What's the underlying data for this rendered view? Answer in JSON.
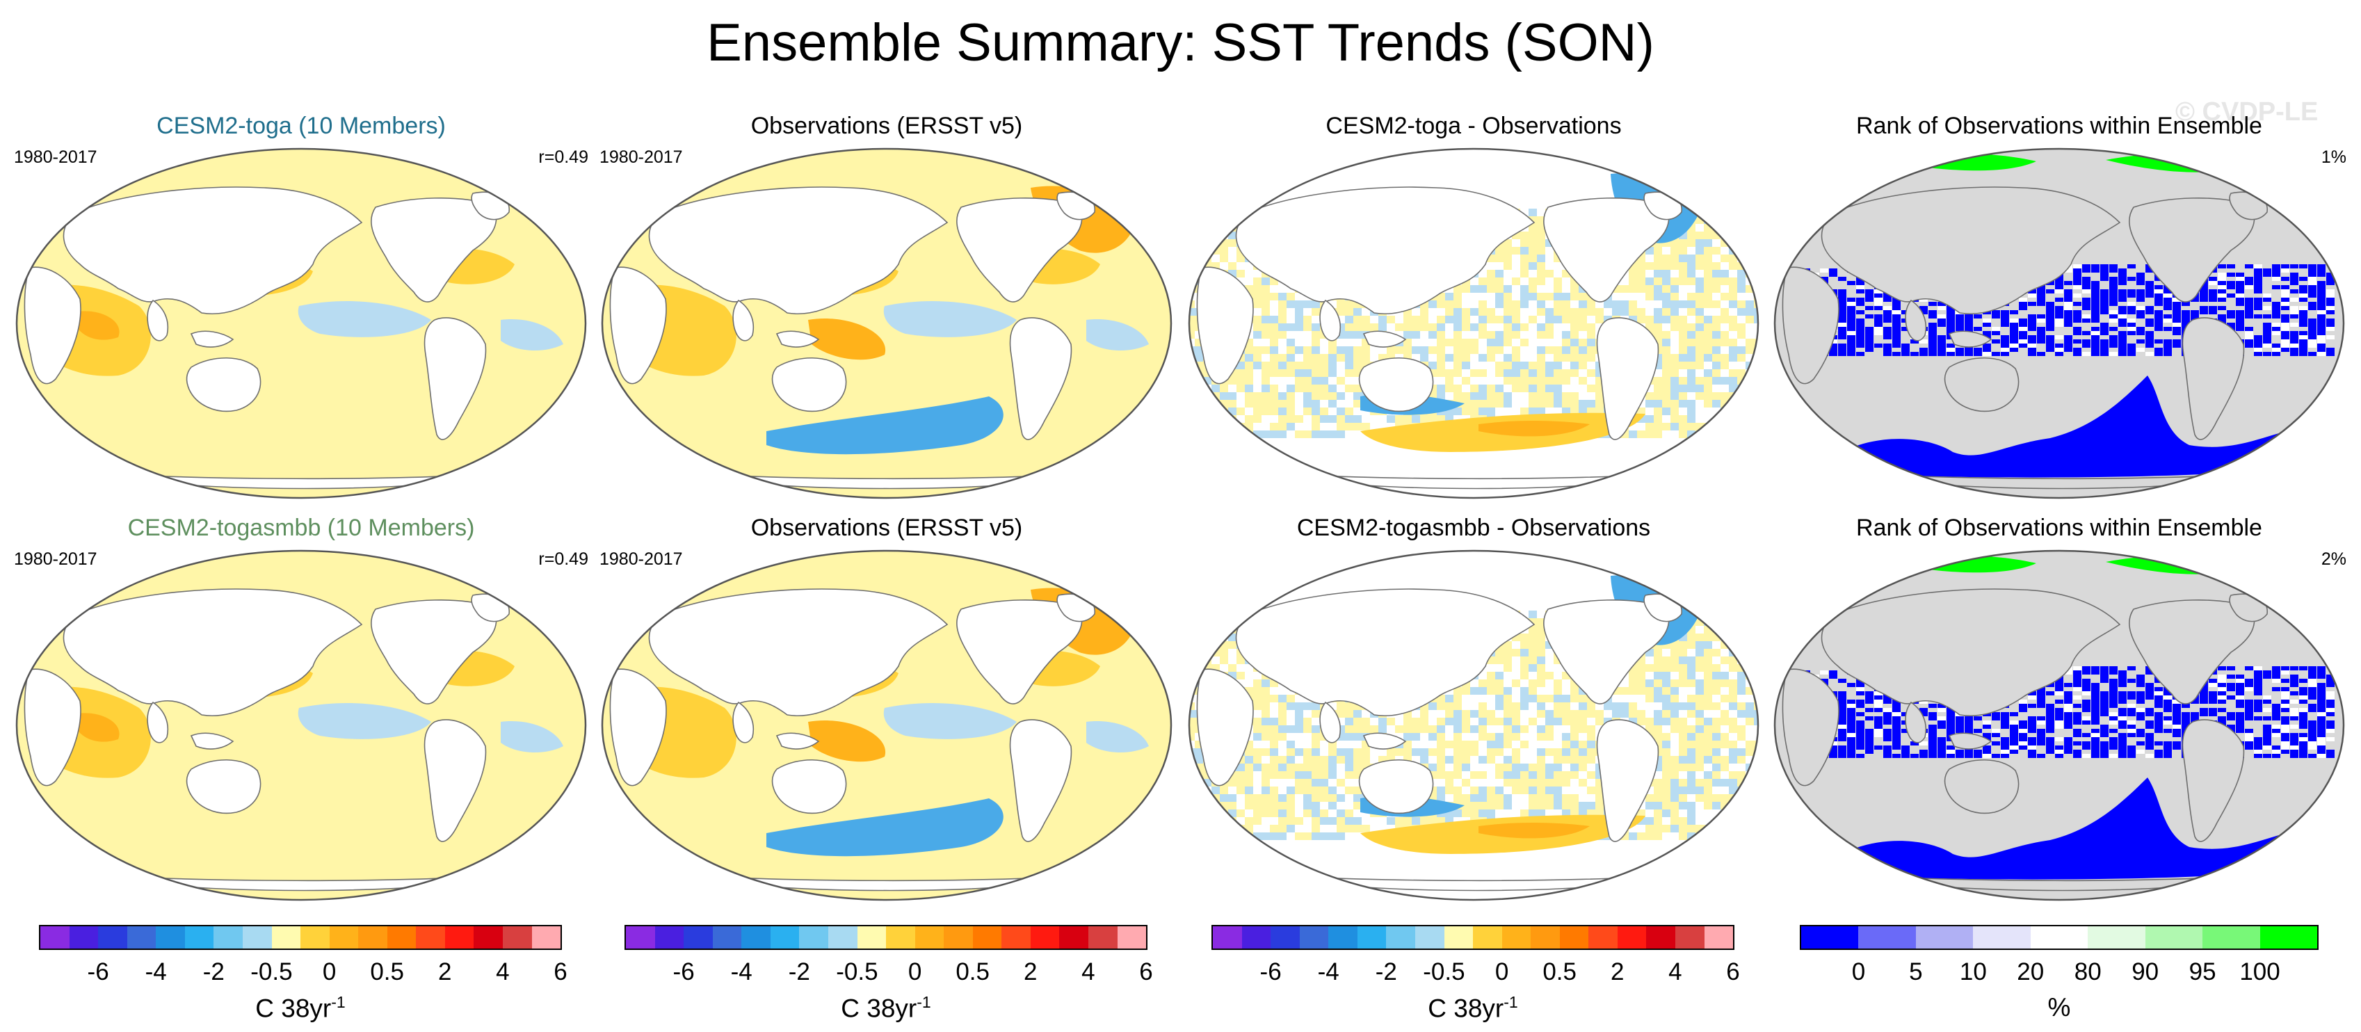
{
  "title": "Ensemble Summary: SST Trends (SON)",
  "watermark": "© CVDP-LE",
  "panels": [
    {
      "title": "CESM2-toga (10 Members)",
      "title_color": "#1f6e8c",
      "period": "1980-2017",
      "stat": "r=0.49",
      "kind": "model"
    },
    {
      "title": "Observations (ERSST v5)",
      "title_color": "#000000",
      "period": "1980-2017",
      "stat": "",
      "kind": "obs"
    },
    {
      "title": "CESM2-toga - Observations",
      "title_color": "#000000",
      "period": "",
      "stat": "",
      "kind": "diff"
    },
    {
      "title": "Rank of Observations within Ensemble",
      "title_color": "#000000",
      "period": "",
      "stat": "1%",
      "kind": "rank"
    },
    {
      "title": "CESM2-togasmbb (10 Members)",
      "title_color": "#5e8f5e",
      "period": "1980-2017",
      "stat": "r=0.49",
      "kind": "model"
    },
    {
      "title": "Observations (ERSST v5)",
      "title_color": "#000000",
      "period": "1980-2017",
      "stat": "",
      "kind": "obs"
    },
    {
      "title": "CESM2-togasmbb - Observations",
      "title_color": "#000000",
      "period": "",
      "stat": "",
      "kind": "diff"
    },
    {
      "title": "Rank of Observations within Ensemble",
      "title_color": "#000000",
      "period": "",
      "stat": "2%",
      "kind": "rank"
    }
  ],
  "colorbars": [
    {
      "units": "C 38yr",
      "units_sup": "-1",
      "ticks": [
        "-6",
        "-4",
        "-2",
        "-0.5",
        "0",
        "0.5",
        "2",
        "4",
        "6"
      ],
      "colors": [
        "#8a2be2",
        "#4a1fe0",
        "#2a3cde",
        "#3a6ad8",
        "#1f8fe0",
        "#2ab0f0",
        "#70c8f0",
        "#a8daf2",
        "#fffbb0",
        "#ffd23a",
        "#ffb21a",
        "#ff9a10",
        "#ff7a00",
        "#ff4a1a",
        "#ff1a10",
        "#d80010",
        "#d84040",
        "#ffaab0"
      ]
    },
    {
      "units": "C 38yr",
      "units_sup": "-1",
      "ticks": [
        "-6",
        "-4",
        "-2",
        "-0.5",
        "0",
        "0.5",
        "2",
        "4",
        "6"
      ],
      "colors": [
        "#8a2be2",
        "#4a1fe0",
        "#2a3cde",
        "#3a6ad8",
        "#1f8fe0",
        "#2ab0f0",
        "#70c8f0",
        "#a8daf2",
        "#fffbb0",
        "#ffd23a",
        "#ffb21a",
        "#ff9a10",
        "#ff7a00",
        "#ff4a1a",
        "#ff1a10",
        "#d80010",
        "#d84040",
        "#ffaab0"
      ]
    },
    {
      "units": "C 38yr",
      "units_sup": "-1",
      "ticks": [
        "-6",
        "-4",
        "-2",
        "-0.5",
        "0",
        "0.5",
        "2",
        "4",
        "6"
      ],
      "colors": [
        "#8a2be2",
        "#4a1fe0",
        "#2a3cde",
        "#3a6ad8",
        "#1f8fe0",
        "#2ab0f0",
        "#70c8f0",
        "#a8daf2",
        "#fffbb0",
        "#ffd23a",
        "#ffb21a",
        "#ff9a10",
        "#ff7a00",
        "#ff4a1a",
        "#ff1a10",
        "#d80010",
        "#d84040",
        "#ffaab0"
      ]
    },
    {
      "units": "%",
      "units_sup": "",
      "ticks": [
        "0",
        "5",
        "10",
        "20",
        "80",
        "90",
        "95",
        "100"
      ],
      "colors": [
        "#0000ff",
        "#6a6af8",
        "#b0b0f4",
        "#e4e4fa",
        "#ffffff",
        "#e2fae2",
        "#b0f8b0",
        "#78f878",
        "#00ff00"
      ]
    }
  ],
  "palette": {
    "land": "#ffffff",
    "rank_land": "#d9d9d9",
    "warm_light": "#fff6a8",
    "warm_mid": "#ffd23a",
    "warm_strong": "#ffb21a",
    "cool_light": "#b8dcf2",
    "cool_mid": "#4aaae8",
    "rank_low": "#0000ff",
    "rank_high": "#00ff00"
  }
}
